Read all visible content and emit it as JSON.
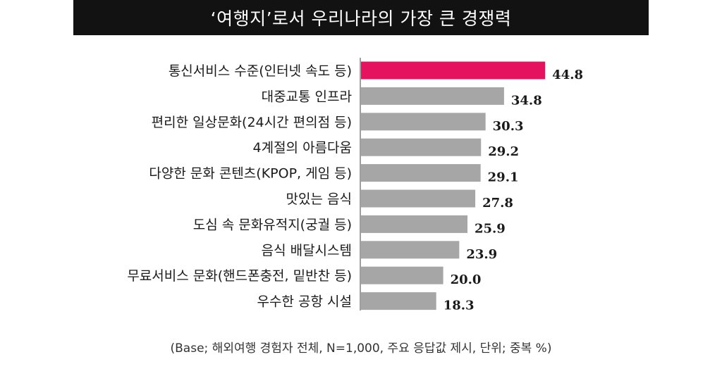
{
  "colors": {
    "title_bg": "#121212",
    "highlight_bar": "#e5135f",
    "default_bar": "#a6a6a6",
    "axis": "#808080"
  },
  "chart_data": {
    "type": "bar",
    "orientation": "horizontal",
    "title": "‘여행지’로서 우리나라의 가장 큰 경쟁력",
    "categories": [
      "통신서비스 수준(인터넷 속도 등)",
      "대중교통 인프라",
      "편리한 일상문화(24시간 편의점 등)",
      "4계절의 아름다움",
      "다양한 문화 콘텐츠(KPOP, 게임 등)",
      "맛있는 음식",
      "도심 속 문화유적지(궁궐 등)",
      "음식 배달시스템",
      "무료서비스 문화(핸드폰충전, 밑반찬 등)",
      "우수한 공항 시설"
    ],
    "values": [
      44.8,
      34.8,
      30.3,
      29.2,
      29.1,
      27.8,
      25.9,
      23.9,
      20.0,
      18.3
    ],
    "value_labels": [
      "44.8",
      "34.8",
      "30.3",
      "29.2",
      "29.1",
      "27.8",
      "25.9",
      "23.9",
      "20.0",
      "18.3"
    ],
    "highlight_index": 0,
    "xlim": [
      0,
      50
    ],
    "grid": false,
    "legend": "none",
    "footnote": "(Base; 해외여행 경험자 전체, N=1,000, 주요 응답값 제시, 단위; 중복 %)"
  }
}
